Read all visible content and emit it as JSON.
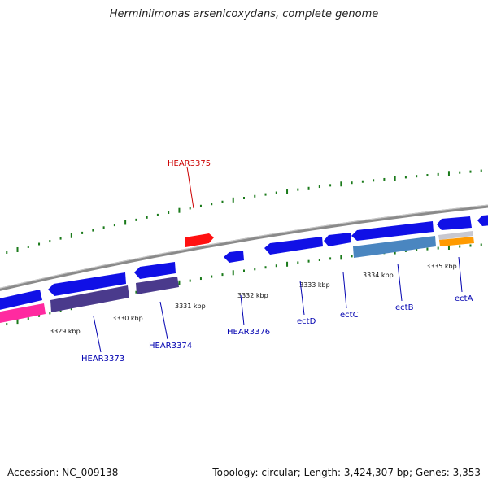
{
  "title": "Herminiimonas arsenicoxydans, complete genome",
  "footer": {
    "accession": "Accession: NC_009138",
    "stats": "Topology: circular; Length: 3,424,307 bp; Genes: 3,353"
  },
  "colors": {
    "backbone": "#8a8a8a",
    "tick": "#1a7a1a",
    "cds": "#1010e6",
    "purple": "#4a3a8c",
    "pink": "#ff2aa0",
    "steel": "#4a86c0",
    "orange": "#ff9a00",
    "silver": "#c8c8d0",
    "red": "#ff1010",
    "label_blue": "#0000b0",
    "label_red": "#cc0000"
  },
  "scale_labels": [
    "3329 kbp",
    "3330 kbp",
    "3331 kbp",
    "3332 kbp",
    "3333 kbp",
    "3334 kbp",
    "3335 kbp"
  ],
  "gene_labels": [
    {
      "name": "HEAR3375",
      "color": "red"
    },
    {
      "name": "HEAR3373",
      "color": "blue"
    },
    {
      "name": "HEAR3374",
      "color": "blue"
    },
    {
      "name": "HEAR3376",
      "color": "blue"
    },
    {
      "name": "ectD",
      "color": "blue"
    },
    {
      "name": "ectC",
      "color": "blue"
    },
    {
      "name": "ectB",
      "color": "blue"
    },
    {
      "name": "ectA",
      "color": "blue"
    }
  ]
}
